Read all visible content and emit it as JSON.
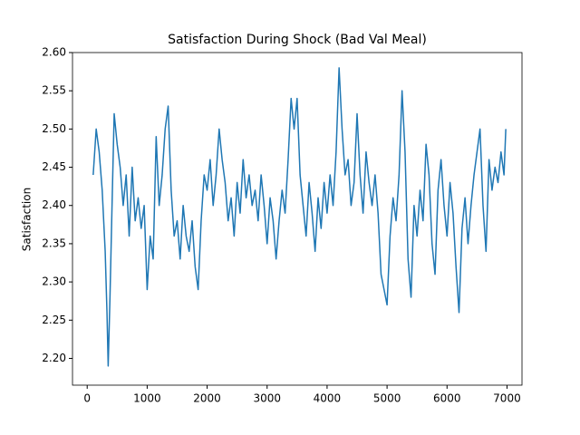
{
  "chart_data": {
    "type": "line",
    "title": "Satisfaction During Shock (Bad Val Meal)",
    "y_label": "Satisfaction",
    "x": [
      100,
      150,
      200,
      250,
      300,
      330,
      350,
      380,
      420,
      450,
      500,
      550,
      600,
      650,
      700,
      750,
      800,
      850,
      900,
      950,
      1000,
      1050,
      1100,
      1150,
      1200,
      1250,
      1300,
      1350,
      1400,
      1450,
      1500,
      1550,
      1600,
      1650,
      1700,
      1750,
      1800,
      1850,
      1900,
      1950,
      2000,
      2050,
      2100,
      2150,
      2200,
      2250,
      2300,
      2350,
      2400,
      2450,
      2500,
      2550,
      2600,
      2650,
      2700,
      2750,
      2800,
      2850,
      2900,
      2950,
      3000,
      3050,
      3100,
      3150,
      3200,
      3250,
      3300,
      3350,
      3400,
      3450,
      3500,
      3550,
      3600,
      3650,
      3700,
      3750,
      3800,
      3850,
      3900,
      3950,
      4000,
      4050,
      4100,
      4150,
      4200,
      4250,
      4300,
      4350,
      4400,
      4450,
      4500,
      4550,
      4600,
      4650,
      4700,
      4750,
      4800,
      4850,
      4900,
      4950,
      5000,
      5050,
      5100,
      5150,
      5200,
      5250,
      5300,
      5350,
      5400,
      5450,
      5500,
      5550,
      5600,
      5650,
      5700,
      5750,
      5800,
      5850,
      5900,
      5950,
      6000,
      6050,
      6100,
      6150,
      6200,
      6250,
      6300,
      6350,
      6400,
      6450,
      6500,
      6550,
      6600,
      6650,
      6700,
      6750,
      6800,
      6850,
      6900,
      6950,
      6980
    ],
    "series": [
      {
        "color": "#1f77b4",
        "values": [
          2.44,
          2.5,
          2.47,
          2.42,
          2.34,
          2.26,
          2.19,
          2.28,
          2.42,
          2.52,
          2.48,
          2.45,
          2.4,
          2.44,
          2.36,
          2.45,
          2.38,
          2.41,
          2.37,
          2.4,
          2.29,
          2.36,
          2.33,
          2.49,
          2.4,
          2.44,
          2.5,
          2.53,
          2.42,
          2.36,
          2.38,
          2.33,
          2.4,
          2.36,
          2.34,
          2.38,
          2.32,
          2.29,
          2.38,
          2.44,
          2.42,
          2.46,
          2.4,
          2.44,
          2.5,
          2.46,
          2.43,
          2.38,
          2.41,
          2.36,
          2.43,
          2.39,
          2.46,
          2.41,
          2.44,
          2.4,
          2.42,
          2.38,
          2.44,
          2.4,
          2.35,
          2.41,
          2.38,
          2.33,
          2.38,
          2.42,
          2.39,
          2.46,
          2.54,
          2.5,
          2.54,
          2.44,
          2.4,
          2.36,
          2.43,
          2.39,
          2.34,
          2.41,
          2.37,
          2.43,
          2.39,
          2.44,
          2.4,
          2.47,
          2.58,
          2.5,
          2.44,
          2.46,
          2.4,
          2.43,
          2.52,
          2.44,
          2.39,
          2.47,
          2.43,
          2.4,
          2.44,
          2.39,
          2.31,
          2.29,
          2.27,
          2.36,
          2.41,
          2.38,
          2.44,
          2.55,
          2.47,
          2.33,
          2.28,
          2.4,
          2.36,
          2.42,
          2.38,
          2.48,
          2.44,
          2.35,
          2.31,
          2.42,
          2.46,
          2.4,
          2.36,
          2.43,
          2.39,
          2.32,
          2.26,
          2.37,
          2.41,
          2.35,
          2.4,
          2.44,
          2.47,
          2.5,
          2.4,
          2.34,
          2.46,
          2.42,
          2.45,
          2.43,
          2.47,
          2.44,
          2.5
        ]
      }
    ],
    "xlim": [
      -245,
      7250
    ],
    "xticks": [
      0,
      1000,
      2000,
      3000,
      4000,
      5000,
      6000,
      7000
    ],
    "ylim": [
      2.165,
      2.6
    ],
    "yticks": [
      {
        "value": 2.2,
        "label": "2.20"
      },
      2.25,
      {
        "value": 2.3,
        "label": "2.30"
      },
      2.35,
      {
        "value": 2.4,
        "label": "2.40"
      },
      2.45,
      {
        "value": 2.5,
        "label": "2.50"
      },
      2.55,
      {
        "value": 2.6,
        "label": "2.60"
      }
    ]
  }
}
